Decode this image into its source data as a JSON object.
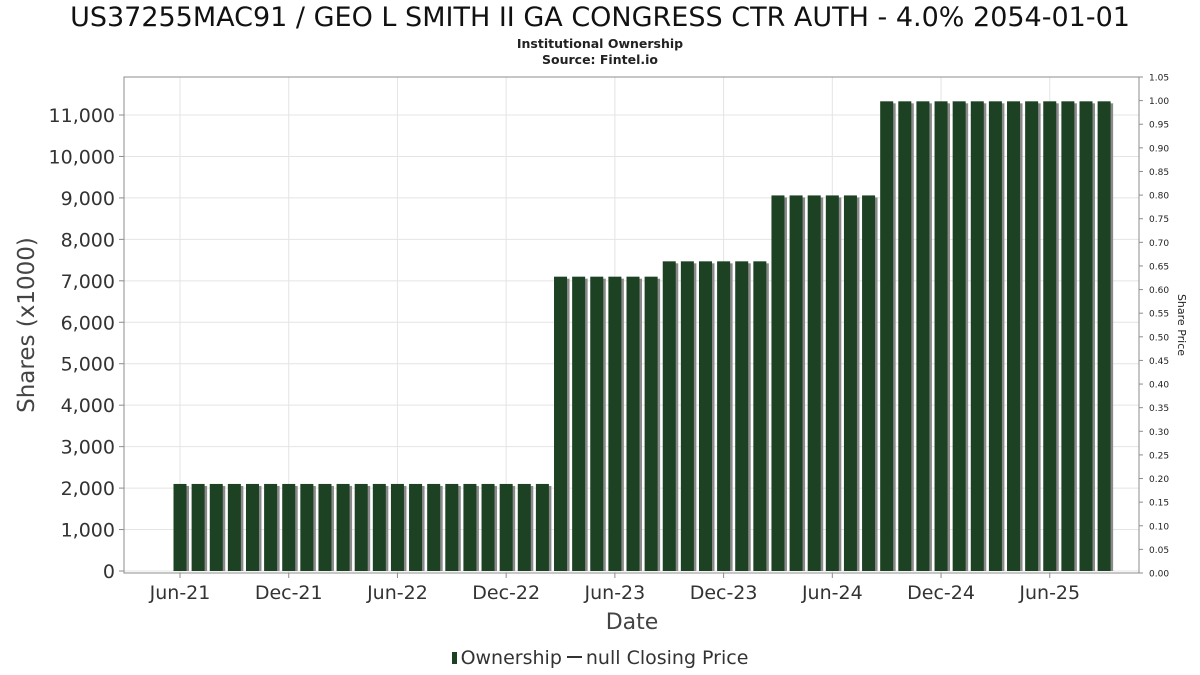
{
  "header": {
    "title": "US37255MAC91 / GEO L SMITH II GA CONGRESS CTR AUTH - 4.0% 2054-01-01",
    "subtitle": "Institutional Ownership",
    "source": "Source: Fintel.io"
  },
  "legend": {
    "ownership": "Ownership",
    "price": "null Closing Price"
  },
  "colors": {
    "bar": "#1c4223",
    "bar_shadow": "#8a8a8a",
    "grid": "#e4e4e4",
    "axis": "#8c8c8c"
  },
  "chart_data": {
    "type": "bar",
    "xlabel": "Date",
    "ylabel": "Shares (x1000)",
    "y2label": "Share Price",
    "ylim": [
      0,
      11400
    ],
    "y2lim": [
      0,
      1.05
    ],
    "yticks": [
      0,
      1000,
      2000,
      3000,
      4000,
      5000,
      6000,
      7000,
      8000,
      9000,
      10000,
      11000
    ],
    "yticklabels": [
      "0",
      "1,000",
      "2,000",
      "3,000",
      "4,000",
      "5,000",
      "6,000",
      "7,000",
      "8,000",
      "9,000",
      "10,000",
      "11,000"
    ],
    "y2ticklabels": [
      "0.00",
      "0.05",
      "0.10",
      "0.15",
      "0.20",
      "0.25",
      "0.30",
      "0.35",
      "0.40",
      "0.45",
      "0.50",
      "0.55",
      "0.60",
      "0.65",
      "0.70",
      "0.75",
      "0.80",
      "0.85",
      "0.90",
      "0.95",
      "1.00",
      "1.05"
    ],
    "xticklabels": [
      "Jun-21",
      "Dec-21",
      "Jun-22",
      "Dec-22",
      "Jun-23",
      "Dec-23",
      "Jun-24",
      "Dec-24",
      "Jun-25"
    ],
    "xtick_bar_positions": [
      0,
      6,
      12,
      18,
      24,
      30,
      36,
      42,
      48
    ],
    "grid": true,
    "legend_position": "bottom",
    "series": [
      {
        "name": "Ownership",
        "values": [
          2100,
          2100,
          2100,
          2100,
          2100,
          2100,
          2100,
          2100,
          2100,
          2100,
          2100,
          2100,
          2100,
          2100,
          2100,
          2100,
          2100,
          2100,
          2100,
          2100,
          2100,
          7100,
          7100,
          7100,
          7100,
          7100,
          7100,
          7470,
          7470,
          7470,
          7470,
          7470,
          7470,
          9060,
          9060,
          9060,
          9060,
          9060,
          9060,
          11330,
          11330,
          11330,
          11330,
          11330,
          11330,
          11330,
          11330,
          11330,
          11330,
          11330,
          11330,
          11330
        ]
      }
    ]
  }
}
